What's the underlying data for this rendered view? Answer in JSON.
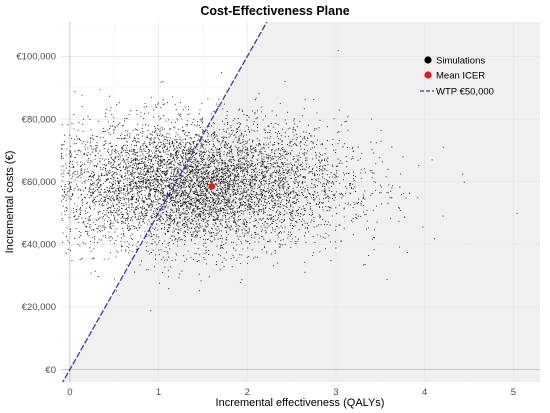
{
  "chart_data": {
    "type": "scatter",
    "title": "Cost-Effectiveness Plane",
    "xlabel": "Incremental effectiveness (QALYs)",
    "ylabel": "Incremental costs (€)",
    "xlim": [
      -0.1,
      5.3
    ],
    "ylim": [
      -4000,
      111000
    ],
    "x_ticks": [
      0,
      1,
      2,
      3,
      4,
      5
    ],
    "x_tick_labels": [
      "0",
      "1",
      "2",
      "3",
      "4",
      "5"
    ],
    "y_ticks": [
      0,
      20000,
      40000,
      60000,
      80000,
      100000
    ],
    "y_tick_labels": [
      "€0",
      "€20,000",
      "€40,000",
      "€60,000",
      "€80,000",
      "€100,000"
    ],
    "grid": true,
    "legend_position": "top-right",
    "shaded_region": "below-wtp-line",
    "colors": {
      "points": "#1a1a1a",
      "mean": "#e41a1c",
      "wtp": "#3a3aa8",
      "shade": "#f0f0f0",
      "grid": "#e6e6e6"
    },
    "series": [
      {
        "name": "Simulations",
        "kind": "points",
        "n": 7000,
        "center": [
          1.4,
          59000
        ],
        "spread": [
          0.85,
          10000
        ]
      },
      {
        "name": "Mean ICER",
        "kind": "point",
        "x": 1.6,
        "y": 58500
      },
      {
        "name": "WTP €50,000",
        "kind": "line",
        "slope": 50000,
        "intercept": 0
      }
    ]
  }
}
